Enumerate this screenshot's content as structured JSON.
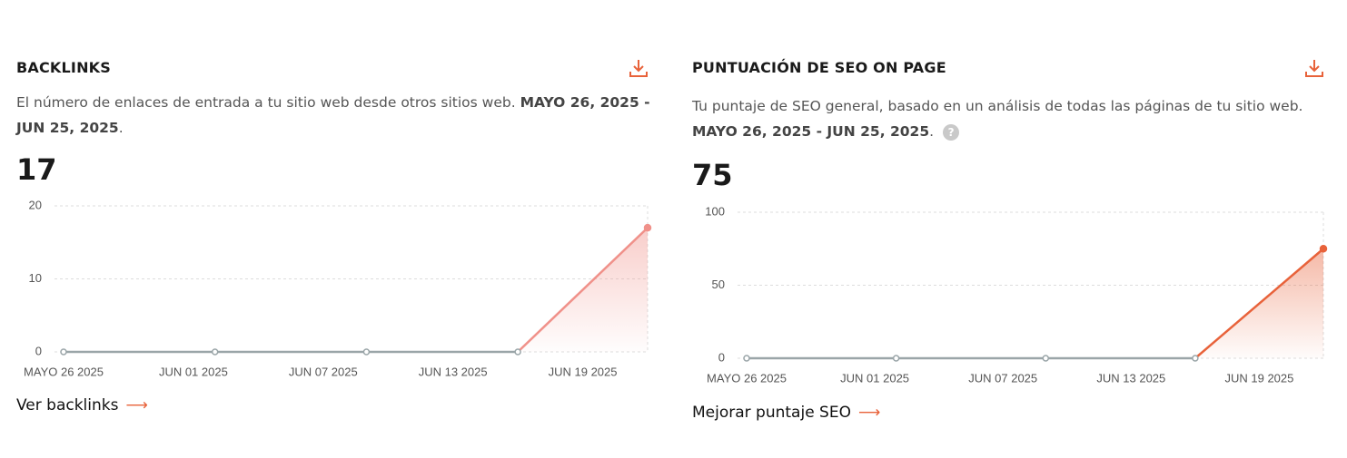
{
  "panels": [
    {
      "title": "BACKLINKS",
      "description": "El número de enlaces de entrada a tu sitio web desde otros sitios web.",
      "date_range": "MAYO 26, 2025 - JUN 25, 2025",
      "date_suffix": ".",
      "current_value": "17",
      "link": "Ver backlinks"
    },
    {
      "title": "PUNTUACIÓN DE SEO ON PAGE",
      "description": "Tu puntaje de SEO general, basado en un análisis de todas las páginas de tu sitio web.",
      "date_range": "MAYO 26, 2025 - JUN 25, 2025",
      "date_suffix": ".",
      "help_icon": "?",
      "current_value": "75",
      "link": "Mejorar puntaje SEO"
    }
  ],
  "chart_data": [
    {
      "type": "line",
      "x": [
        "2025-05-26",
        "2025-06-02",
        "2025-06-09",
        "2025-06-16",
        "2025-06-22"
      ],
      "values": [
        0,
        0,
        0,
        0,
        17
      ],
      "color": "#f0918a",
      "flat_color": "#9aa5a8",
      "xlim": [
        "2025-05-26",
        "2025-06-22"
      ],
      "xticks": [
        {
          "value": "2025-05-26",
          "label": "MAYO 26 2025"
        },
        {
          "value": "2025-06-01",
          "label": "JUN 01 2025"
        },
        {
          "value": "2025-06-07",
          "label": "JUN 07 2025"
        },
        {
          "value": "2025-06-13",
          "label": "JUN 13 2025"
        },
        {
          "value": "2025-06-19",
          "label": "JUN 19 2025"
        }
      ],
      "ylim": [
        0,
        20
      ],
      "yticks": [
        0,
        10,
        20
      ],
      "grid": true
    },
    {
      "type": "line",
      "x": [
        "2025-05-26",
        "2025-06-02",
        "2025-06-09",
        "2025-06-16",
        "2025-06-22"
      ],
      "values": [
        0,
        0,
        0,
        0,
        75
      ],
      "color": "#e8623a",
      "flat_color": "#9aa5a8",
      "xlim": [
        "2025-05-26",
        "2025-06-22"
      ],
      "xticks": [
        {
          "value": "2025-05-26",
          "label": "MAYO 26 2025"
        },
        {
          "value": "2025-06-01",
          "label": "JUN 01 2025"
        },
        {
          "value": "2025-06-07",
          "label": "JUN 07 2025"
        },
        {
          "value": "2025-06-13",
          "label": "JUN 13 2025"
        },
        {
          "value": "2025-06-19",
          "label": "JUN 19 2025"
        }
      ],
      "ylim": [
        0,
        100
      ],
      "yticks": [
        0,
        50,
        100
      ],
      "grid": true
    }
  ]
}
